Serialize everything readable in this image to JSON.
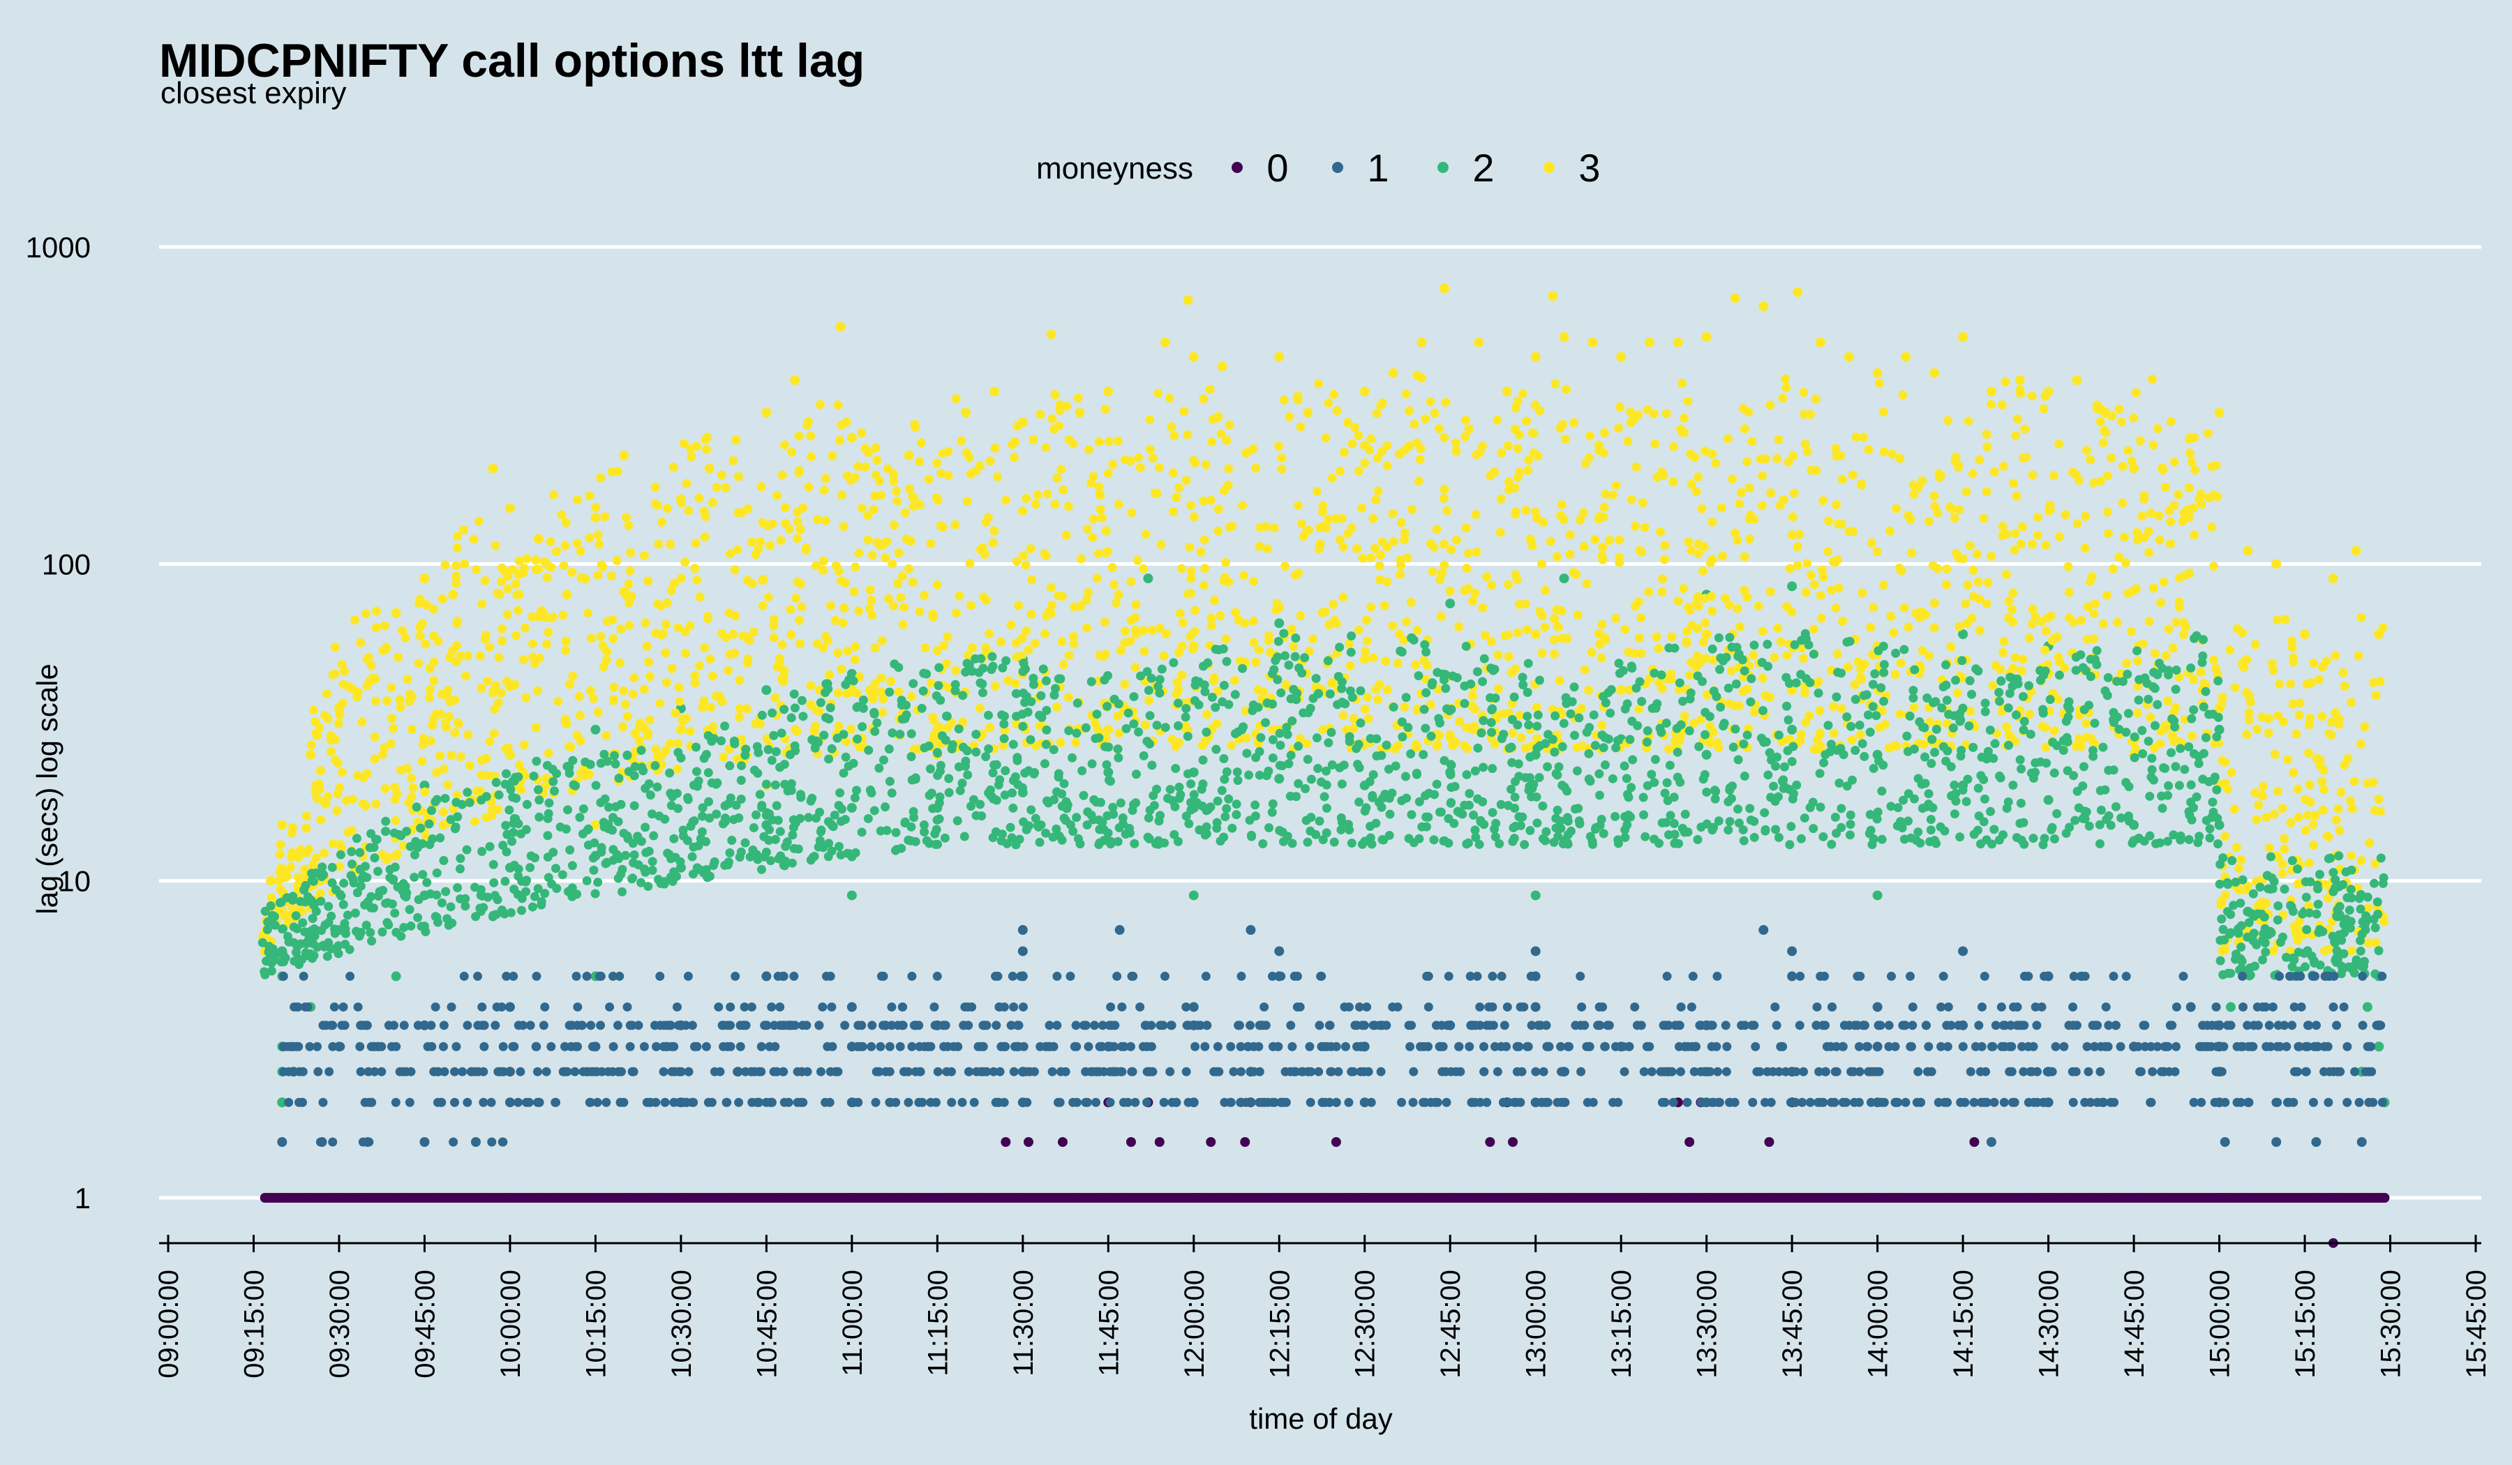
{
  "chart_data": {
    "type": "scatter",
    "title": "MIDCPNIFTY call options ltt lag",
    "subtitle": "closest expiry",
    "xlabel": "time of day",
    "ylabel": "lag (secs) log scale",
    "y_scale": "log10",
    "ylim": [
      0.72,
      1600
    ],
    "xlim": [
      "08:59:00",
      "15:46:00"
    ],
    "y_ticks": [
      1,
      10,
      100,
      1000
    ],
    "y_tick_labels": [
      "1",
      "10",
      "100",
      "1000"
    ],
    "x_ticks": [
      "09:00:00",
      "09:15:00",
      "09:30:00",
      "09:45:00",
      "10:00:00",
      "10:15:00",
      "10:30:00",
      "10:45:00",
      "11:00:00",
      "11:15:00",
      "11:30:00",
      "11:45:00",
      "12:00:00",
      "12:15:00",
      "12:30:00",
      "12:45:00",
      "13:00:00",
      "13:15:00",
      "13:30:00",
      "13:45:00",
      "14:00:00",
      "14:15:00",
      "14:30:00",
      "14:45:00",
      "15:00:00",
      "15:15:00",
      "15:30:00",
      "15:45:00"
    ],
    "grid": "horizontal major only",
    "legend": {
      "title": "moneyness",
      "position": "top",
      "entries": [
        "0",
        "1",
        "2",
        "3"
      ]
    },
    "series": [
      {
        "name": "0",
        "color": "#440154",
        "points": [
          [
            "09:17:00",
            1
          ],
          [
            "09:30:00",
            1
          ],
          [
            "10:00:00",
            1
          ],
          [
            "10:30:00",
            1
          ],
          [
            "11:00:00",
            1
          ],
          [
            "11:30:00",
            1
          ],
          [
            "12:00:00",
            1
          ],
          [
            "12:30:00",
            1
          ],
          [
            "13:00:00",
            1
          ],
          [
            "13:30:00",
            1
          ],
          [
            "14:00:00",
            1
          ],
          [
            "14:30:00",
            1
          ],
          [
            "15:00:00",
            1
          ],
          [
            "15:29:00",
            1
          ],
          [
            "11:27:00",
            1.5
          ],
          [
            "11:31:00",
            1.5
          ],
          [
            "11:37:00",
            1.5
          ],
          [
            "11:49:00",
            1.5
          ],
          [
            "11:54:00",
            1.5
          ],
          [
            "12:03:00",
            1.5
          ],
          [
            "12:09:00",
            1.5
          ],
          [
            "12:25:00",
            1.5
          ],
          [
            "12:52:00",
            1.5
          ],
          [
            "12:56:00",
            1.5
          ],
          [
            "13:27:00",
            1.5
          ],
          [
            "13:41:00",
            1.5
          ],
          [
            "14:17:00",
            1.5
          ],
          [
            "11:45:00",
            2
          ],
          [
            "11:52:00",
            2
          ],
          [
            "12:10:00",
            2
          ],
          [
            "12:55:00",
            2
          ],
          [
            "13:25:00",
            2
          ],
          [
            "13:29:00",
            2
          ],
          [
            "13:45:00",
            2
          ],
          [
            "15:20:00",
            0.72
          ]
        ]
      },
      {
        "name": "1",
        "color": "#31688e",
        "points": [
          [
            "09:17:00",
            1
          ],
          [
            "09:25:00",
            1
          ],
          [
            "09:35:00",
            1
          ],
          [
            "15:01:00",
            1
          ],
          [
            "15:20:00",
            1
          ],
          [
            "15:29:00",
            1
          ],
          [
            "09:20:00",
            1.5
          ],
          [
            "09:27:00",
            1.5
          ],
          [
            "09:35:00",
            1.5
          ],
          [
            "09:45:00",
            1.5
          ],
          [
            "09:54:00",
            1.5
          ],
          [
            "15:01:00",
            1.5
          ],
          [
            "15:10:00",
            1.5
          ],
          [
            "15:17:00",
            1.5
          ],
          [
            "15:25:00",
            1.5
          ],
          [
            "14:20:00",
            1.5
          ],
          [
            "09:20:00",
            2
          ],
          [
            "10:00:00",
            2
          ],
          [
            "10:30:00",
            2
          ],
          [
            "11:00:00",
            2
          ],
          [
            "11:30:00",
            2
          ],
          [
            "12:00:00",
            2
          ],
          [
            "12:30:00",
            2
          ],
          [
            "13:00:00",
            2
          ],
          [
            "13:30:00",
            2
          ],
          [
            "14:00:00",
            2
          ],
          [
            "14:30:00",
            2
          ],
          [
            "15:00:00",
            2
          ],
          [
            "15:29:00",
            2
          ],
          [
            "09:22:00",
            2.5
          ],
          [
            "10:00:00",
            2.5
          ],
          [
            "10:40:00",
            2.5
          ],
          [
            "11:30:00",
            2.5
          ],
          [
            "12:10:00",
            2.5
          ],
          [
            "13:05:00",
            2.5
          ],
          [
            "13:45:00",
            2.5
          ],
          [
            "14:30:00",
            2.5
          ],
          [
            "15:00:00",
            2.5
          ],
          [
            "15:25:00",
            2.5
          ],
          [
            "09:30:00",
            3
          ],
          [
            "10:15:00",
            3
          ],
          [
            "11:00:00",
            3
          ],
          [
            "11:45:00",
            3
          ],
          [
            "12:30:00",
            3
          ],
          [
            "13:15:00",
            3
          ],
          [
            "14:00:00",
            3
          ],
          [
            "14:45:00",
            3
          ],
          [
            "15:00:00",
            3
          ],
          [
            "15:28:00",
            3
          ],
          [
            "09:45:00",
            3.5
          ],
          [
            "10:30:00",
            3.5
          ],
          [
            "11:15:00",
            3.5
          ],
          [
            "12:00:00",
            3.5
          ],
          [
            "12:45:00",
            3.5
          ],
          [
            "13:30:00",
            3.5
          ],
          [
            "14:15:00",
            3.5
          ],
          [
            "15:00:00",
            3.5
          ],
          [
            "15:28:00",
            3.5
          ],
          [
            "10:00:00",
            4
          ],
          [
            "11:00:00",
            4
          ],
          [
            "12:00:00",
            4
          ],
          [
            "13:00:00",
            4
          ],
          [
            "14:00:00",
            4
          ],
          [
            "14:55:00",
            4
          ],
          [
            "10:45:00",
            5
          ],
          [
            "11:30:00",
            5
          ],
          [
            "12:15:00",
            5
          ],
          [
            "13:00:00",
            5
          ],
          [
            "13:45:00",
            5
          ],
          [
            "14:30:00",
            5
          ],
          [
            "11:30:00",
            6
          ],
          [
            "12:15:00",
            6
          ],
          [
            "13:00:00",
            6
          ],
          [
            "13:45:00",
            6
          ],
          [
            "14:15:00",
            6
          ],
          [
            "11:30:00",
            7
          ],
          [
            "11:47:00",
            7
          ],
          [
            "12:10:00",
            7
          ],
          [
            "13:40:00",
            7
          ]
        ]
      },
      {
        "name": "2",
        "color": "#35b779",
        "points": [
          [
            "09:20:00",
            2
          ],
          [
            "15:29:00",
            2
          ],
          [
            "09:20:00",
            2.5
          ],
          [
            "15:25:00",
            2.5
          ],
          [
            "09:20:00",
            3
          ],
          [
            "15:28:00",
            3
          ],
          [
            "09:25:00",
            4
          ],
          [
            "15:02:00",
            4
          ],
          [
            "15:26:00",
            4
          ],
          [
            "09:20:00",
            5
          ],
          [
            "09:40:00",
            5
          ],
          [
            "10:15:00",
            5
          ],
          [
            "15:28:00",
            5
          ],
          [
            "09:20:00",
            6
          ],
          [
            "09:30:00",
            7
          ],
          [
            "09:45:00",
            9
          ],
          [
            "10:00:00",
            11
          ],
          [
            "10:15:00",
            12
          ],
          [
            "10:30:00",
            11
          ],
          [
            "10:45:00",
            15
          ],
          [
            "11:00:00",
            17
          ],
          [
            "11:15:00",
            17
          ],
          [
            "11:30:00",
            19
          ],
          [
            "11:45:00",
            22
          ],
          [
            "12:00:00",
            22
          ],
          [
            "12:15:00",
            21
          ],
          [
            "12:30:00",
            20
          ],
          [
            "12:45:00",
            22
          ],
          [
            "13:00:00",
            25
          ],
          [
            "13:15:00",
            28
          ],
          [
            "13:30:00",
            25
          ],
          [
            "13:45:00",
            30
          ],
          [
            "14:00:00",
            25
          ],
          [
            "14:15:00",
            20
          ],
          [
            "14:30:00",
            18
          ],
          [
            "14:45:00",
            15
          ],
          [
            "15:00:00",
            15
          ],
          [
            "15:05:00",
            8
          ],
          [
            "15:15:00",
            8
          ],
          [
            "15:25:00",
            7
          ],
          [
            "09:45:00",
            20
          ],
          [
            "10:00:00",
            25
          ],
          [
            "10:15:00",
            30
          ],
          [
            "10:30:00",
            35
          ],
          [
            "10:45:00",
            40
          ],
          [
            "11:00:00",
            45
          ],
          [
            "11:30:00",
            50
          ],
          [
            "11:52:00",
            90
          ],
          [
            "12:15:00",
            65
          ],
          [
            "12:45:00",
            75
          ],
          [
            "13:05:00",
            90
          ],
          [
            "13:30:00",
            80
          ],
          [
            "13:45:00",
            85
          ],
          [
            "14:15:00",
            60
          ],
          [
            "14:30:00",
            55
          ],
          [
            "15:00:00",
            30
          ],
          [
            "11:00:00",
            9
          ],
          [
            "12:00:00",
            9
          ],
          [
            "13:00:00",
            9
          ],
          [
            "14:00:00",
            9
          ]
        ]
      },
      {
        "name": "3",
        "color": "#fde725",
        "points": [
          [
            "09:17:00",
            6
          ],
          [
            "09:18:00",
            10
          ],
          [
            "09:20:00",
            15
          ],
          [
            "09:25:00",
            25
          ],
          [
            "09:30:00",
            35
          ],
          [
            "09:35:00",
            50
          ],
          [
            "09:40:00",
            70
          ],
          [
            "09:45:00",
            90
          ],
          [
            "09:50:00",
            80
          ],
          [
            "09:57:00",
            200
          ],
          [
            "10:00:00",
            150
          ],
          [
            "10:05:00",
            120
          ],
          [
            "10:10:00",
            80
          ],
          [
            "10:15:00",
            140
          ],
          [
            "10:20:00",
            220
          ],
          [
            "10:30:00",
            160
          ],
          [
            "10:35:00",
            200
          ],
          [
            "10:45:00",
            300
          ],
          [
            "10:50:00",
            380
          ],
          [
            "10:58:00",
            560
          ],
          [
            "11:00:00",
            250
          ],
          [
            "11:10:00",
            220
          ],
          [
            "11:20:00",
            300
          ],
          [
            "11:25:00",
            350
          ],
          [
            "11:30:00",
            280
          ],
          [
            "11:35:00",
            530
          ],
          [
            "11:40:00",
            300
          ],
          [
            "11:45:00",
            350
          ],
          [
            "11:55:00",
            500
          ],
          [
            "11:59:00",
            680
          ],
          [
            "12:00:00",
            450
          ],
          [
            "12:05:00",
            420
          ],
          [
            "12:15:00",
            450
          ],
          [
            "12:20:00",
            300
          ],
          [
            "12:30:00",
            350
          ],
          [
            "12:35:00",
            400
          ],
          [
            "12:40:00",
            500
          ],
          [
            "12:44:00",
            740
          ],
          [
            "12:50:00",
            500
          ],
          [
            "12:55:00",
            350
          ],
          [
            "13:00:00",
            450
          ],
          [
            "13:03:00",
            700
          ],
          [
            "13:05:00",
            520
          ],
          [
            "13:10:00",
            500
          ],
          [
            "13:15:00",
            450
          ],
          [
            "13:20:00",
            500
          ],
          [
            "13:25:00",
            500
          ],
          [
            "13:30:00",
            520
          ],
          [
            "13:35:00",
            690
          ],
          [
            "13:40:00",
            650
          ],
          [
            "13:46:00",
            720
          ],
          [
            "13:50:00",
            500
          ],
          [
            "13:55:00",
            450
          ],
          [
            "14:00:00",
            400
          ],
          [
            "14:05:00",
            450
          ],
          [
            "14:10:00",
            400
          ],
          [
            "14:15:00",
            520
          ],
          [
            "14:20:00",
            350
          ],
          [
            "14:25:00",
            380
          ],
          [
            "14:30:00",
            350
          ],
          [
            "14:35:00",
            380
          ],
          [
            "14:40:00",
            300
          ],
          [
            "14:45:00",
            200
          ],
          [
            "14:50:00",
            200
          ],
          [
            "14:55:00",
            250
          ],
          [
            "15:00:00",
            300
          ],
          [
            "15:05:00",
            110
          ],
          [
            "15:10:00",
            100
          ],
          [
            "15:15:00",
            60
          ],
          [
            "15:20:00",
            90
          ],
          [
            "15:24:00",
            110
          ],
          [
            "15:28:00",
            60
          ],
          [
            "10:00:00",
            25
          ],
          [
            "10:30:00",
            30
          ],
          [
            "11:00:00",
            40
          ],
          [
            "11:30:00",
            45
          ],
          [
            "12:00:00",
            55
          ],
          [
            "12:30:00",
            50
          ],
          [
            "13:00:00",
            60
          ],
          [
            "13:30:00",
            60
          ],
          [
            "14:00:00",
            55
          ],
          [
            "14:30:00",
            45
          ],
          [
            "15:00:00",
            35
          ],
          [
            "15:10:00",
            12
          ],
          [
            "15:20:00",
            10
          ],
          [
            "09:40:00",
            12
          ],
          [
            "10:15:00",
            15
          ],
          [
            "10:45:00",
            20
          ],
          [
            "11:15:00",
            25
          ],
          [
            "11:45:00",
            30
          ],
          [
            "12:15:00",
            30
          ],
          [
            "12:45:00",
            35
          ],
          [
            "13:15:00",
            40
          ],
          [
            "13:45:00",
            40
          ],
          [
            "14:15:00",
            35
          ],
          [
            "14:45:00",
            25
          ]
        ]
      }
    ]
  }
}
